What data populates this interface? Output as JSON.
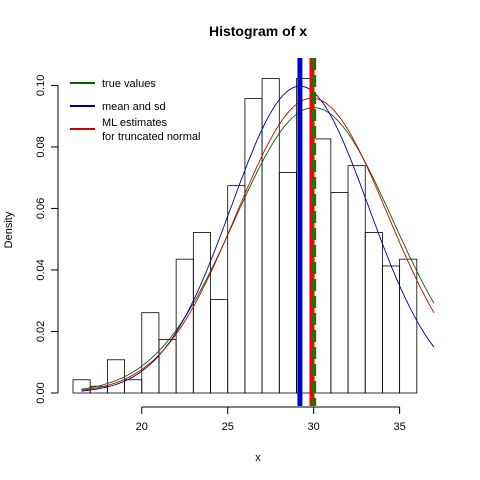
{
  "chart_data": {
    "type": "bar",
    "title": "Histogram of x",
    "xlabel": "x",
    "ylabel": "Density",
    "xlim": [
      16,
      37
    ],
    "ylim": [
      0,
      0.105
    ],
    "x_ticks": [
      20,
      25,
      30,
      35
    ],
    "y_ticks": [
      0.0,
      0.02,
      0.04,
      0.06,
      0.08,
      0.1
    ],
    "y_tick_labels": [
      "0.00",
      "0.02",
      "0.04",
      "0.06",
      "0.08",
      "0.10"
    ],
    "bins": [
      {
        "x0": 16,
        "x1": 17,
        "density": 0.0043
      },
      {
        "x0": 17,
        "x1": 18,
        "density": 0.0022
      },
      {
        "x0": 18,
        "x1": 19,
        "density": 0.0108
      },
      {
        "x0": 19,
        "x1": 20,
        "density": 0.0043
      },
      {
        "x0": 20,
        "x1": 21,
        "density": 0.0261
      },
      {
        "x0": 21,
        "x1": 22,
        "density": 0.0174
      },
      {
        "x0": 22,
        "x1": 23,
        "density": 0.0435
      },
      {
        "x0": 23,
        "x1": 24,
        "density": 0.0522
      },
      {
        "x0": 24,
        "x1": 25,
        "density": 0.0304
      },
      {
        "x0": 25,
        "x1": 26,
        "density": 0.0674
      },
      {
        "x0": 26,
        "x1": 27,
        "density": 0.0957
      },
      {
        "x0": 27,
        "x1": 28,
        "density": 0.1022
      },
      {
        "x0": 28,
        "x1": 29,
        "density": 0.0717
      },
      {
        "x0": 29,
        "x1": 30,
        "density": 0.1022
      },
      {
        "x0": 30,
        "x1": 31,
        "density": 0.0826
      },
      {
        "x0": 31,
        "x1": 32,
        "density": 0.0652
      },
      {
        "x0": 32,
        "x1": 33,
        "density": 0.0739
      },
      {
        "x0": 33,
        "x1": 34,
        "density": 0.0522
      },
      {
        "x0": 34,
        "x1": 35,
        "density": 0.0413
      },
      {
        "x0": 35,
        "x1": 36,
        "density": 0.0435
      }
    ],
    "curves": [
      {
        "name": "true values",
        "color": "#006400",
        "mean": 30,
        "sd": 4.6,
        "trunc": [
          16,
          37
        ]
      },
      {
        "name": "mean and sd",
        "color": "#00008b",
        "mean": 29.2,
        "sd": 4.0,
        "trunc": null
      },
      {
        "name": "ML estimates for truncated normal",
        "color": "#cc0000",
        "mean": 29.9,
        "sd": 4.4,
        "trunc": [
          16,
          37
        ]
      }
    ],
    "vlines": [
      {
        "name": "mean and sd",
        "x": 29.2,
        "color": "#0000cc",
        "dashed": false
      },
      {
        "name": "ML estimates for truncated normal",
        "x": 29.9,
        "color": "#ff0000",
        "dashed": false
      },
      {
        "name": "true values",
        "x": 30.0,
        "color": "#2e6b00",
        "dashed": true
      }
    ],
    "legend": {
      "position": "top-left",
      "items": [
        {
          "label": "true values",
          "color": "#006400"
        },
        {
          "label": "mean and sd",
          "color": "#00008b"
        },
        {
          "label": "ML estimates\nfor truncated normal",
          "color": "#cc0000"
        }
      ]
    }
  }
}
